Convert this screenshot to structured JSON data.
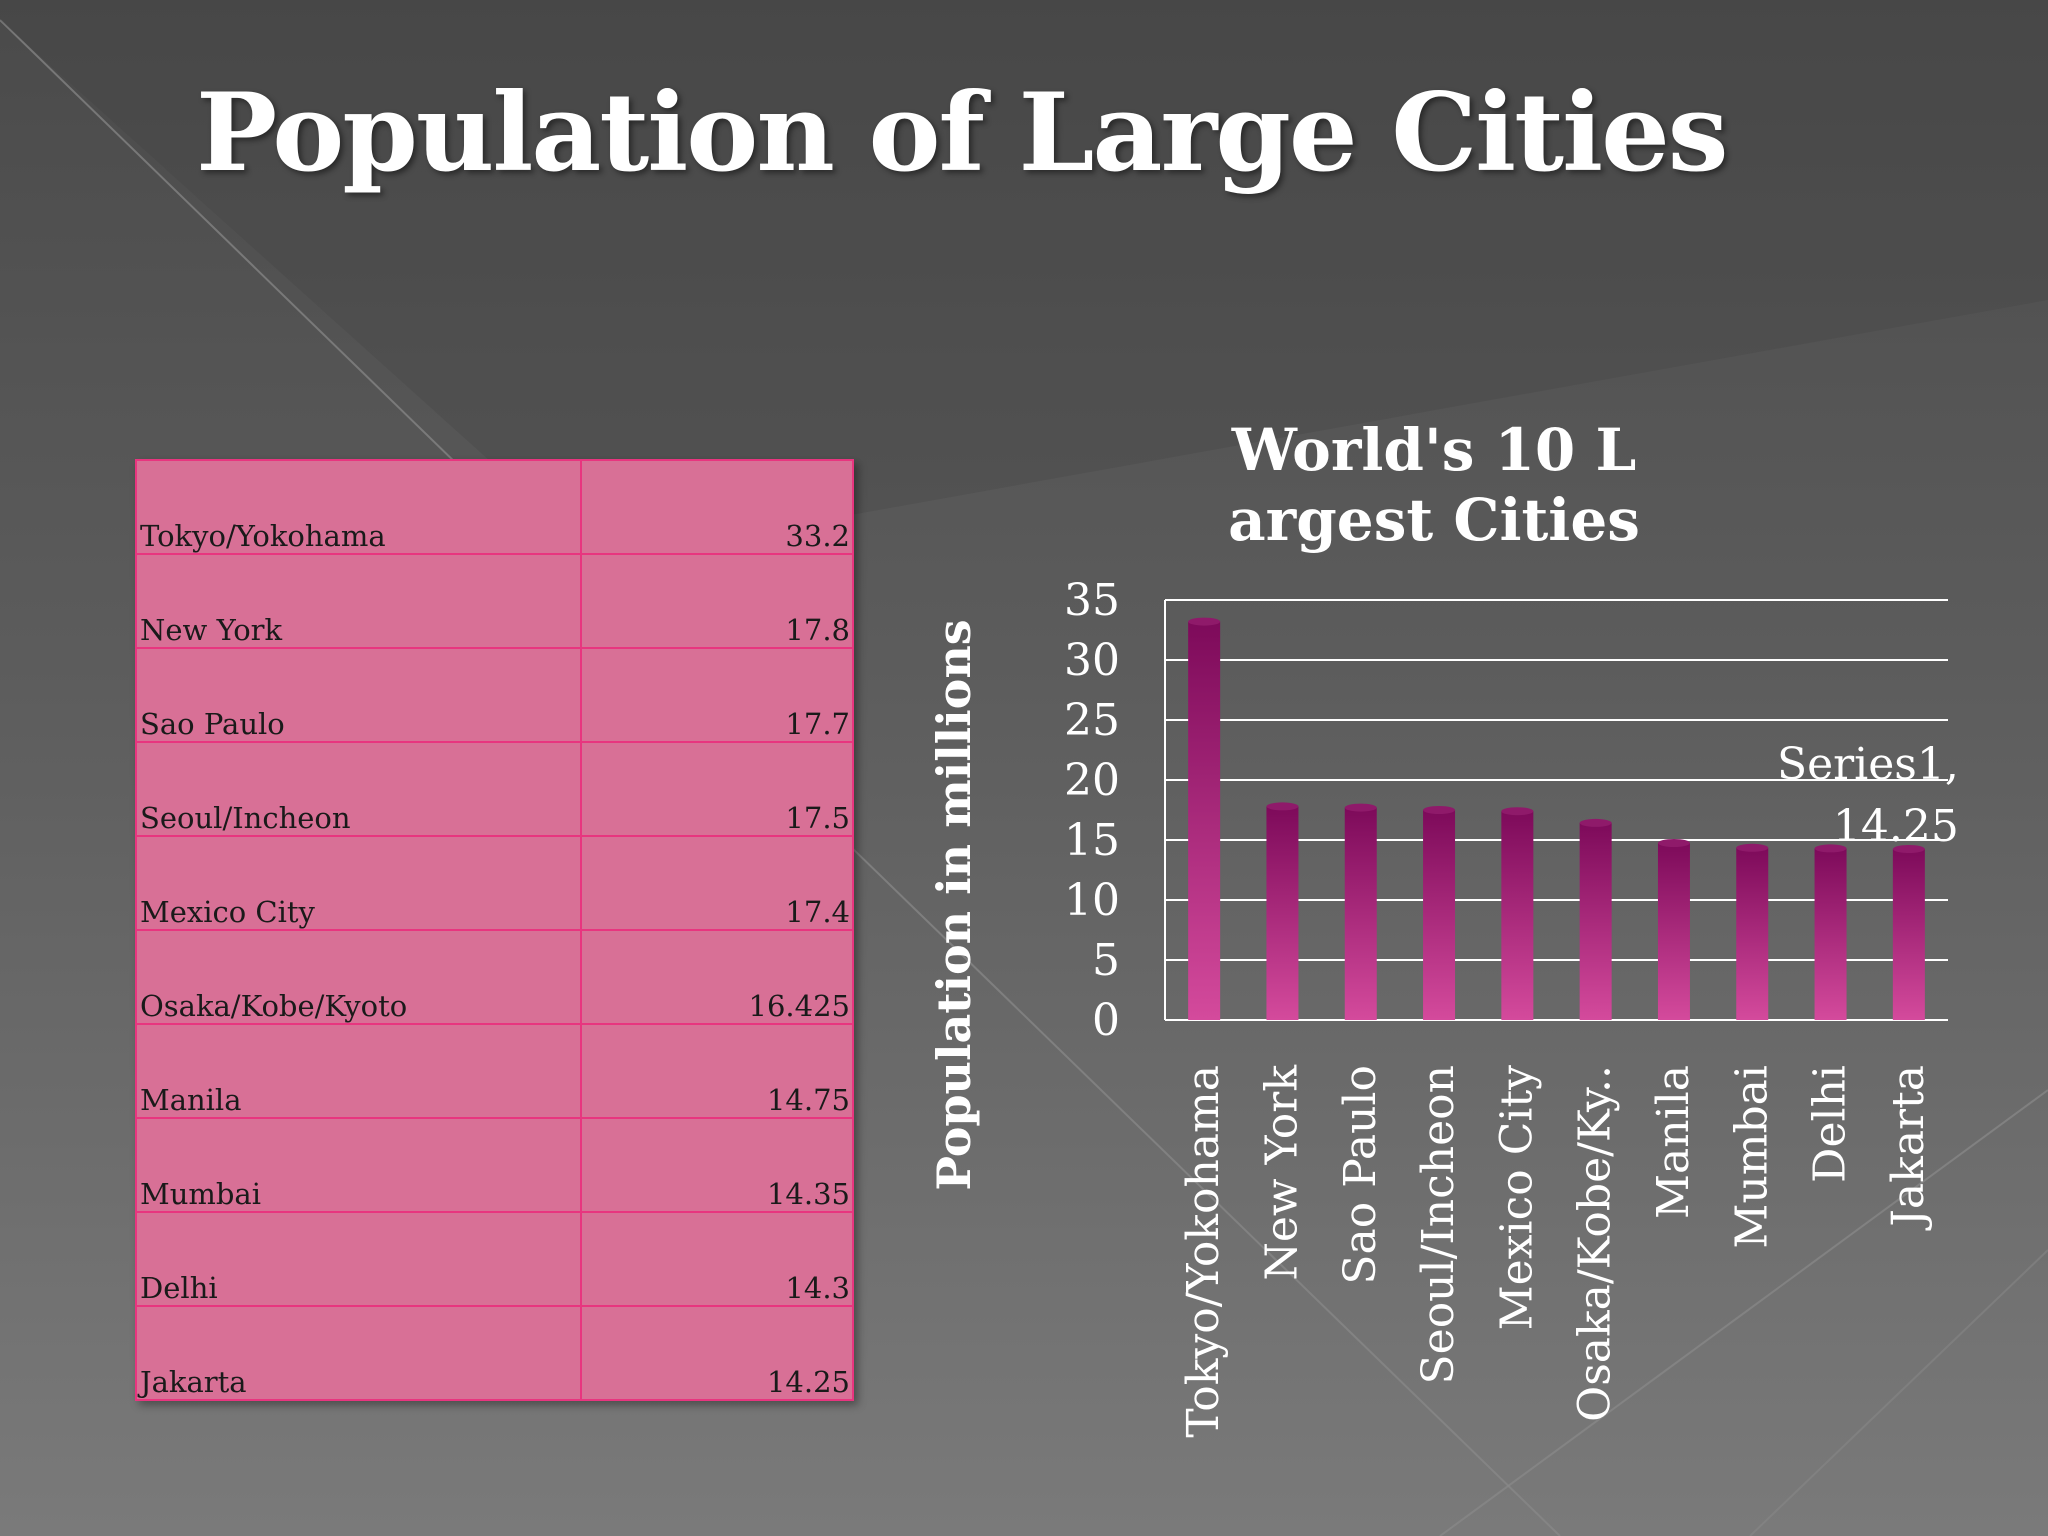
{
  "slide": {
    "title": "Population of Large Cities"
  },
  "colors": {
    "table_fill": "#d87096",
    "table_border": "#e8357f",
    "bar_dark": "#7d0a5a",
    "bar_light": "#d44a9c"
  },
  "table": {
    "rows": [
      {
        "city": "Tokyo/Yokohama",
        "value": "33.2"
      },
      {
        "city": "New York",
        "value": "17.8"
      },
      {
        "city": "Sao Paulo",
        "value": "17.7"
      },
      {
        "city": "Seoul/Incheon",
        "value": "17.5"
      },
      {
        "city": "Mexico City",
        "value": "17.4"
      },
      {
        "city": "Osaka/Kobe/Kyoto",
        "value": "16.425"
      },
      {
        "city": "Manila",
        "value": "14.75"
      },
      {
        "city": "Mumbai",
        "value": "14.35"
      },
      {
        "city": "Delhi",
        "value": "14.3"
      },
      {
        "city": "Jakarta",
        "value": "14.25"
      }
    ]
  },
  "chart_data": {
    "type": "bar",
    "title_lines": [
      "World's 10 L",
      "argest Cities"
    ],
    "xlabel": "",
    "ylabel": "Population in millions",
    "categories": [
      "Tokyo/Yokohama",
      "New York",
      "Sao Paulo",
      "Seoul/Incheon",
      "Mexico City",
      "Osaka/Kobe/Ky..",
      "Manila",
      "Mumbai",
      "Delhi",
      "Jakarta"
    ],
    "series": [
      {
        "values": [
          33.2,
          17.8,
          17.7,
          17.5,
          17.4,
          16.425,
          14.75,
          14.35,
          14.3,
          14.25
        ]
      }
    ],
    "ylim": [
      0,
      35
    ],
    "yticks": [
      "0",
      "5",
      "10",
      "15",
      "20",
      "25",
      "30",
      "35"
    ],
    "grid": true,
    "legend": "none",
    "annotation": {
      "lines": [
        "Series1,",
        "14.25"
      ],
      "category": "Jakarta"
    }
  }
}
